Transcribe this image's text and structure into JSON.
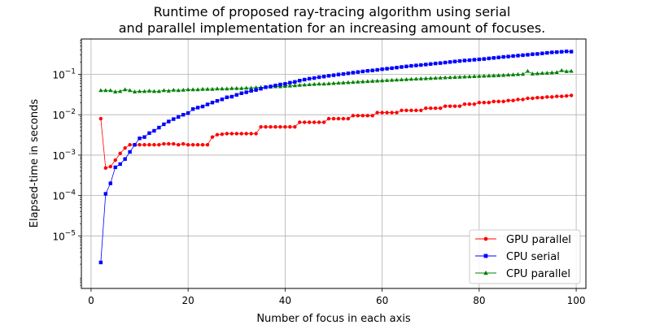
{
  "chart_data": {
    "type": "line",
    "title": [
      "Runtime of proposed ray-tracing algorithm using serial",
      "and parallel implementation for an increasing amount of focuses."
    ],
    "xlabel": "Number of focus in each axis",
    "ylabel": "Elapsed-time in seconds",
    "xscale": "linear",
    "yscale": "log",
    "xlim": [
      -2,
      102
    ],
    "ylim": [
      5e-07,
      0.75
    ],
    "xticks": [
      0,
      20,
      40,
      60,
      80,
      100
    ],
    "xtick_labels": [
      "0",
      "20",
      "40",
      "60",
      "80",
      "100"
    ],
    "yticks": [
      1e-05,
      0.0001,
      0.001,
      0.01,
      0.1
    ],
    "ytick_labels": [
      {
        "base": "10",
        "exp": "−5"
      },
      {
        "base": "10",
        "exp": "−4"
      },
      {
        "base": "10",
        "exp": "−3"
      },
      {
        "base": "10",
        "exp": "−2"
      },
      {
        "base": "10",
        "exp": "−1"
      }
    ],
    "grid": true,
    "legend_position": "lower-right",
    "x_start": 2,
    "series": [
      {
        "name": "GPU parallel",
        "color": "#ff0000",
        "marker": "circle",
        "values": [
          0.008,
          0.00048,
          0.00052,
          0.00075,
          0.0011,
          0.0015,
          0.0018,
          0.0018,
          0.0018,
          0.0018,
          0.0018,
          0.0018,
          0.0018,
          0.0019,
          0.0019,
          0.0019,
          0.0018,
          0.0019,
          0.0018,
          0.0018,
          0.0018,
          0.0018,
          0.0018,
          0.0028,
          0.0032,
          0.0033,
          0.0034,
          0.0034,
          0.0034,
          0.0034,
          0.0034,
          0.0034,
          0.0034,
          0.005,
          0.005,
          0.005,
          0.005,
          0.005,
          0.005,
          0.005,
          0.005,
          0.0065,
          0.0065,
          0.0065,
          0.0065,
          0.0065,
          0.0065,
          0.008,
          0.008,
          0.008,
          0.008,
          0.008,
          0.0095,
          0.0095,
          0.0095,
          0.0095,
          0.0095,
          0.0113,
          0.0113,
          0.0113,
          0.0113,
          0.0113,
          0.0128,
          0.0128,
          0.0128,
          0.0128,
          0.0128,
          0.0145,
          0.0145,
          0.0145,
          0.0145,
          0.0163,
          0.0163,
          0.0163,
          0.0163,
          0.0183,
          0.0183,
          0.0183,
          0.02,
          0.02,
          0.02,
          0.0213,
          0.0213,
          0.0213,
          0.0225,
          0.0225,
          0.0238,
          0.0238,
          0.0255,
          0.0255,
          0.0265,
          0.0265,
          0.0275,
          0.0275,
          0.0285,
          0.0285,
          0.0292,
          0.03
        ]
      },
      {
        "name": "CPU serial",
        "color": "#0000ff",
        "marker": "square",
        "values": [
          2.2e-06,
          0.00011,
          0.0002,
          0.0005,
          0.0006,
          0.0008,
          0.0012,
          0.0018,
          0.0026,
          0.0028,
          0.0035,
          0.004,
          0.0048,
          0.0058,
          0.0068,
          0.0078,
          0.0088,
          0.01,
          0.011,
          0.0138,
          0.015,
          0.016,
          0.018,
          0.02,
          0.022,
          0.024,
          0.027,
          0.028,
          0.031,
          0.034,
          0.036,
          0.039,
          0.041,
          0.044,
          0.048,
          0.05,
          0.053,
          0.056,
          0.058,
          0.062,
          0.065,
          0.07,
          0.074,
          0.078,
          0.081,
          0.085,
          0.088,
          0.092,
          0.095,
          0.099,
          0.102,
          0.106,
          0.11,
          0.114,
          0.118,
          0.122,
          0.125,
          0.129,
          0.134,
          0.138,
          0.142,
          0.147,
          0.152,
          0.157,
          0.162,
          0.166,
          0.17,
          0.175,
          0.18,
          0.186,
          0.19,
          0.196,
          0.202,
          0.208,
          0.214,
          0.22,
          0.224,
          0.23,
          0.235,
          0.24,
          0.248,
          0.255,
          0.262,
          0.27,
          0.276,
          0.284,
          0.291,
          0.298,
          0.305,
          0.315,
          0.32,
          0.33,
          0.34,
          0.35,
          0.355,
          0.362,
          0.37,
          0.365
        ]
      },
      {
        "name": "CPU parallel",
        "color": "#008000",
        "marker": "triangle",
        "values": [
          0.04,
          0.04,
          0.04,
          0.037,
          0.038,
          0.042,
          0.04,
          0.037,
          0.038,
          0.038,
          0.039,
          0.038,
          0.038,
          0.04,
          0.039,
          0.041,
          0.04,
          0.041,
          0.042,
          0.042,
          0.042,
          0.043,
          0.043,
          0.043,
          0.044,
          0.044,
          0.044,
          0.045,
          0.045,
          0.045,
          0.046,
          0.046,
          0.047,
          0.048,
          0.048,
          0.049,
          0.05,
          0.05,
          0.051,
          0.052,
          0.053,
          0.054,
          0.055,
          0.056,
          0.057,
          0.058,
          0.058,
          0.059,
          0.06,
          0.061,
          0.062,
          0.063,
          0.064,
          0.065,
          0.066,
          0.067,
          0.068,
          0.069,
          0.07,
          0.071,
          0.072,
          0.073,
          0.074,
          0.075,
          0.076,
          0.077,
          0.078,
          0.079,
          0.08,
          0.081,
          0.082,
          0.083,
          0.084,
          0.085,
          0.086,
          0.087,
          0.088,
          0.089,
          0.09,
          0.091,
          0.092,
          0.093,
          0.094,
          0.095,
          0.097,
          0.098,
          0.1,
          0.101,
          0.12,
          0.103,
          0.105,
          0.107,
          0.108,
          0.11,
          0.112,
          0.125,
          0.118,
          0.12
        ]
      }
    ]
  }
}
